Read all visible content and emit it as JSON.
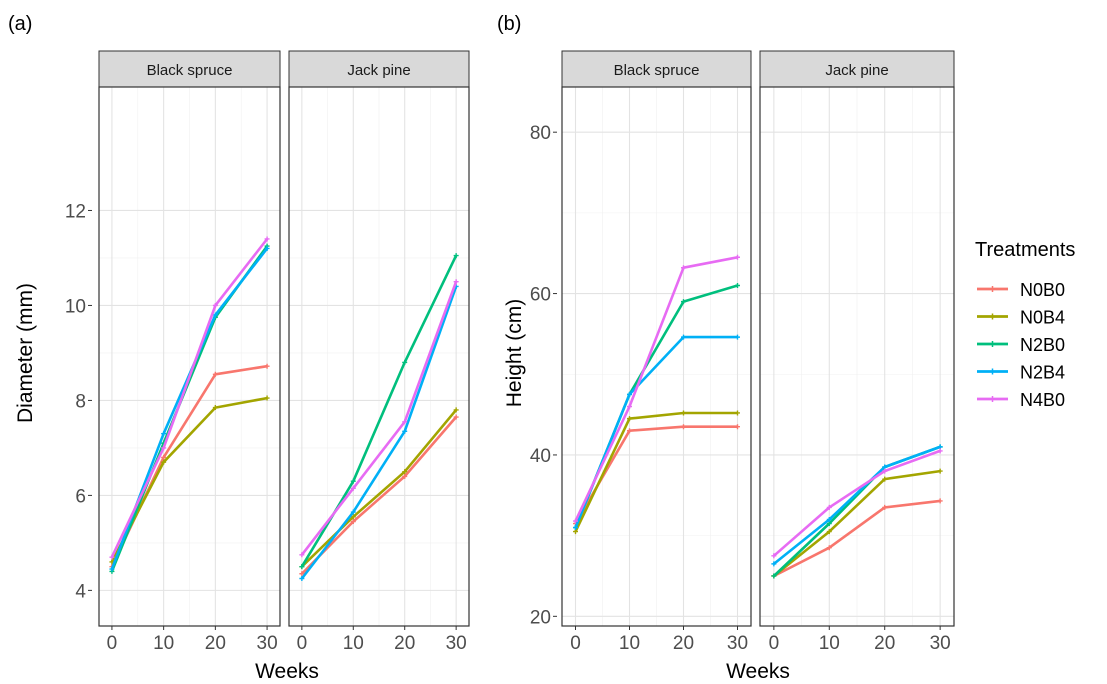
{
  "series_colors": {
    "N0B0": "#F8766D",
    "N0B4": "#A3A500",
    "N2B0": "#00BF7D",
    "N2B4": "#00B0F6",
    "N4B0": "#E76BF3"
  },
  "legend": {
    "title": "Treatments",
    "position": "right",
    "items": [
      "N0B0",
      "N0B4",
      "N2B0",
      "N2B4",
      "N4B0"
    ]
  },
  "chart_data": [
    {
      "tag": "(a)",
      "type": "line",
      "xlabel": "Weeks",
      "ylabel": "Diameter (mm)",
      "x": [
        0,
        10,
        20,
        30
      ],
      "xlim": [
        -2.5,
        32.5
      ],
      "ylim": [
        3.25,
        14.6
      ],
      "xticks": [
        0,
        10,
        20,
        30
      ],
      "yticks": [
        4,
        6,
        8,
        10,
        12
      ],
      "grid": true,
      "facets": [
        {
          "strip": "Black spruce",
          "series": [
            {
              "name": "N0B0",
              "values": [
                4.5,
                6.8,
                8.55,
                8.72
              ]
            },
            {
              "name": "N0B4",
              "values": [
                4.6,
                6.7,
                7.85,
                8.05
              ]
            },
            {
              "name": "N2B0",
              "values": [
                4.4,
                7.1,
                9.75,
                11.25
              ]
            },
            {
              "name": "N2B4",
              "values": [
                4.45,
                7.3,
                9.8,
                11.2
              ]
            },
            {
              "name": "N4B0",
              "values": [
                4.7,
                7.0,
                10.0,
                11.4
              ]
            }
          ]
        },
        {
          "strip": "Jack pine",
          "series": [
            {
              "name": "N0B0",
              "values": [
                4.35,
                5.45,
                6.4,
                7.65
              ]
            },
            {
              "name": "N0B4",
              "values": [
                4.5,
                5.55,
                6.5,
                7.8
              ]
            },
            {
              "name": "N2B0",
              "values": [
                4.5,
                6.3,
                8.8,
                11.05
              ]
            },
            {
              "name": "N2B4",
              "values": [
                4.25,
                5.65,
                7.35,
                10.4
              ]
            },
            {
              "name": "N4B0",
              "values": [
                4.75,
                6.15,
                7.55,
                10.5
              ]
            }
          ]
        }
      ]
    },
    {
      "tag": "(b)",
      "type": "line",
      "xlabel": "Weeks",
      "ylabel": "Height (cm)",
      "x": [
        0,
        10,
        20,
        30
      ],
      "xlim": [
        -2.5,
        32.5
      ],
      "ylim": [
        18.8,
        85.6
      ],
      "xticks": [
        0,
        10,
        20,
        30
      ],
      "yticks": [
        20,
        40,
        60,
        80
      ],
      "grid": true,
      "facets": [
        {
          "strip": "Black spruce",
          "series": [
            {
              "name": "N0B0",
              "values": [
                31.5,
                43.0,
                43.5,
                43.5
              ]
            },
            {
              "name": "N0B4",
              "values": [
                30.5,
                44.5,
                45.2,
                45.2
              ]
            },
            {
              "name": "N2B0",
              "values": [
                31.0,
                47.5,
                59.0,
                61.0
              ]
            },
            {
              "name": "N2B4",
              "values": [
                31.0,
                47.5,
                54.6,
                54.6
              ]
            },
            {
              "name": "N4B0",
              "values": [
                31.8,
                46.0,
                63.2,
                64.5
              ]
            }
          ]
        },
        {
          "strip": "Jack pine",
          "series": [
            {
              "name": "N0B0",
              "values": [
                25.0,
                28.5,
                33.5,
                34.3
              ]
            },
            {
              "name": "N0B4",
              "values": [
                25.0,
                30.5,
                37.0,
                38.0
              ]
            },
            {
              "name": "N2B0",
              "values": [
                25.0,
                31.5,
                38.5,
                41.0
              ]
            },
            {
              "name": "N2B4",
              "values": [
                26.5,
                32.0,
                38.5,
                41.0
              ]
            },
            {
              "name": "N4B0",
              "values": [
                27.5,
                33.5,
                38.0,
                40.5
              ]
            }
          ]
        }
      ]
    }
  ]
}
